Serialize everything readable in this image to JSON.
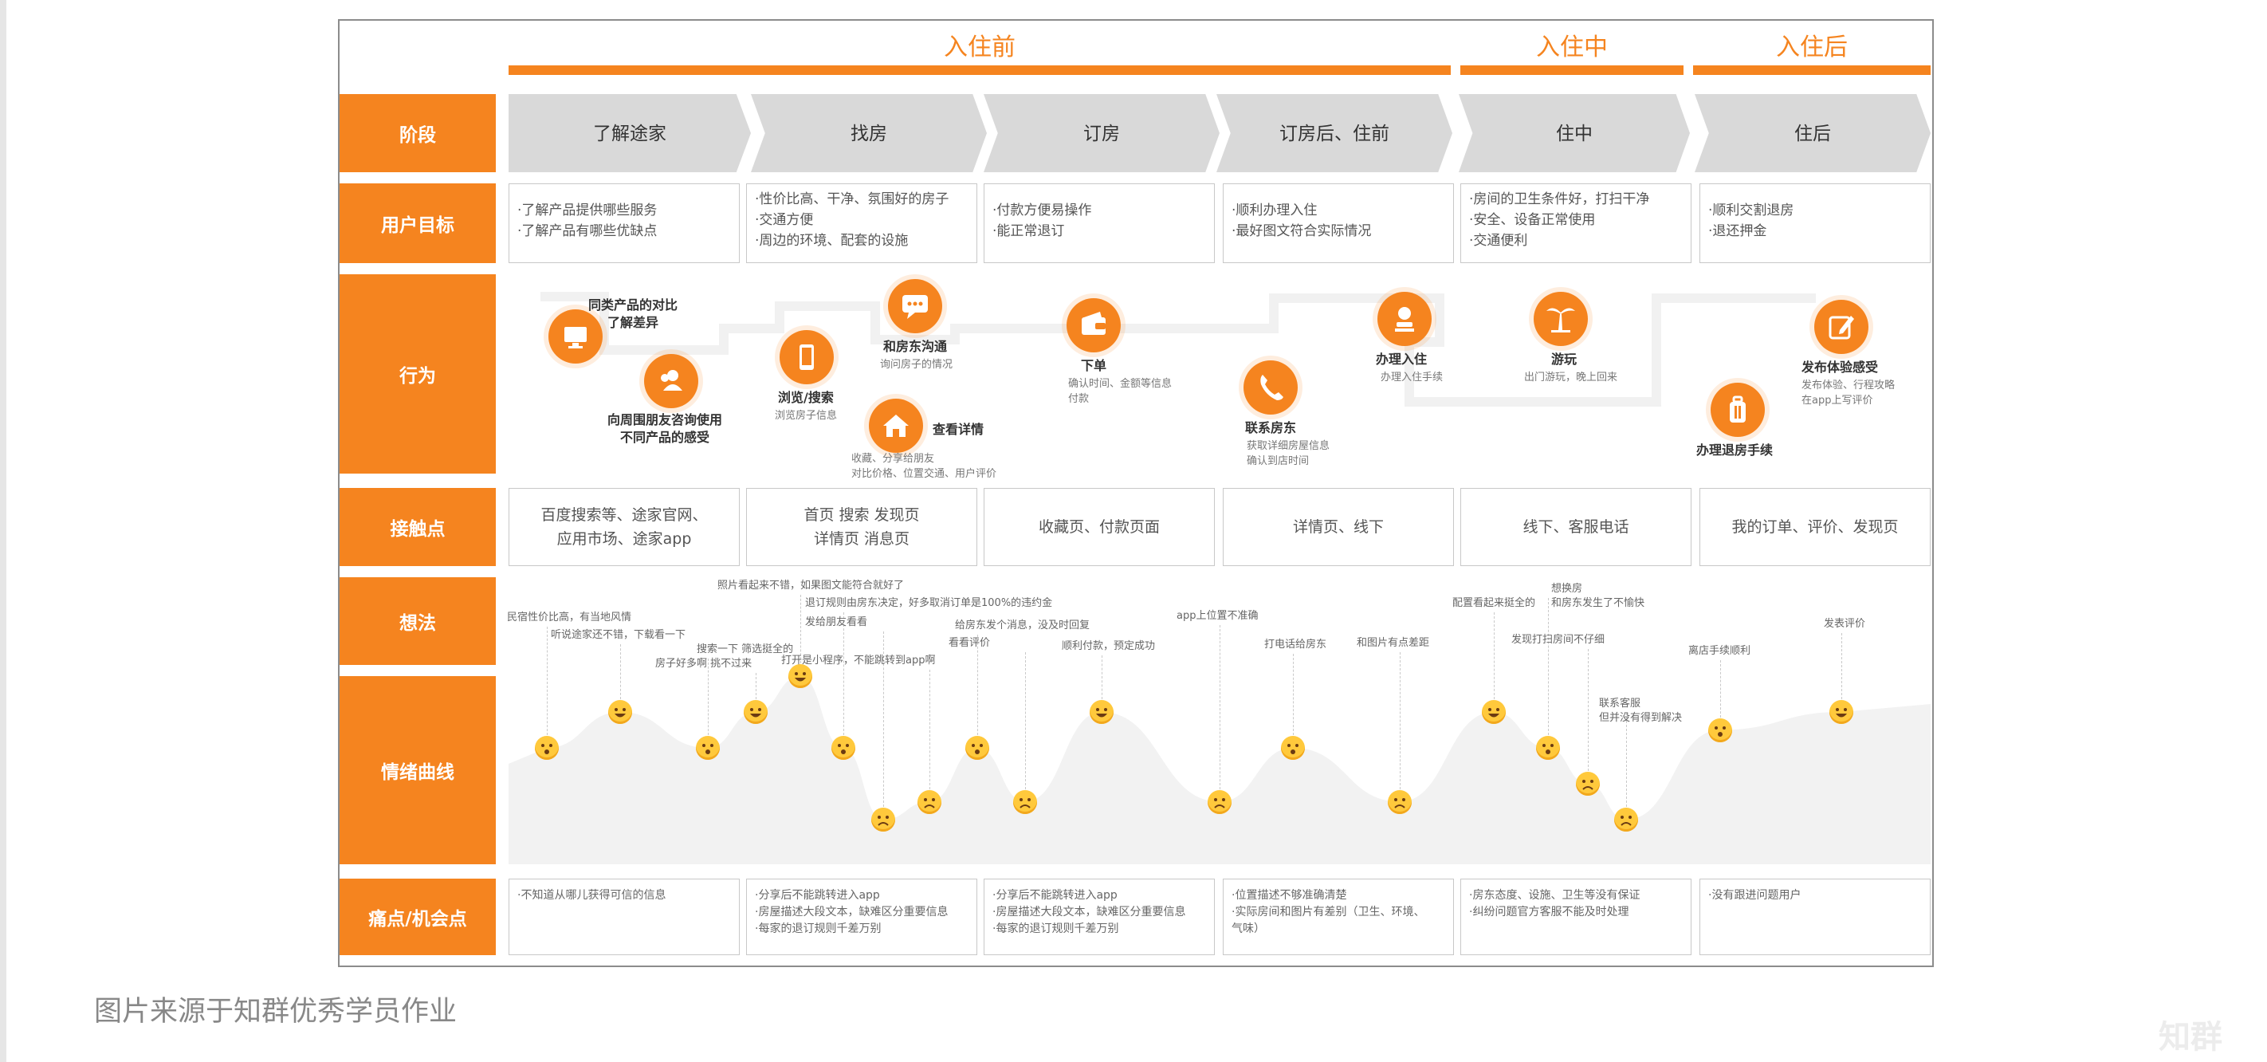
{
  "phases": [
    "入住前",
    "入住中",
    "入住后"
  ],
  "row_labels": [
    "阶段",
    "用户目标",
    "行为",
    "接触点",
    "想法",
    "情绪曲线",
    "痛点/机会点"
  ],
  "stages": [
    "了解途家",
    "找房",
    "订房",
    "订房后、住前",
    "住中",
    "住后"
  ],
  "goals": [
    [
      "·了解产品提供哪些服务",
      "·了解产品有哪些优缺点"
    ],
    [
      "·性价比高、干净、氛围好的房子",
      "·交通方便",
      "·周边的环境、配套的设施"
    ],
    [
      "·付款方便易操作",
      "·能正常退订"
    ],
    [
      "·顺利办理入住",
      "·最好图文符合实际情况"
    ],
    [
      "·房间的卫生条件好，打扫干净",
      "·安全、设备正常使用",
      "·交通便利"
    ],
    [
      "·顺利交割退房",
      "·退还押金"
    ]
  ],
  "actions": [
    {
      "icon": "monitor-icon",
      "title": "同类产品的对比\n了解差异",
      "sub": ""
    },
    {
      "icon": "users-icon",
      "title": "向周围朋友咨询使用\n不同产品的感受",
      "sub": ""
    },
    {
      "icon": "phone-icon",
      "title": "浏览/搜索",
      "sub": "浏览房子信息"
    },
    {
      "icon": "chat-icon",
      "title": "和房东沟通",
      "sub": "询问房子的情况"
    },
    {
      "icon": "home-icon",
      "title": "查看详情",
      "sub": "收藏、分享给朋友\n对比价格、位置交通、用户评价"
    },
    {
      "icon": "wallet-icon",
      "title": "下单",
      "sub": "确认时间、金额等信息\n付款"
    },
    {
      "icon": "call-icon",
      "title": "联系房东",
      "sub": "获取详细房屋信息\n确认到店时间"
    },
    {
      "icon": "checkin-icon",
      "title": "办理入住",
      "sub": "办理入住手续"
    },
    {
      "icon": "palm-icon",
      "title": "游玩",
      "sub": "出门游玩，晚上回来"
    },
    {
      "icon": "luggage-icon",
      "title": "办理退房手续",
      "sub": ""
    },
    {
      "icon": "edit-icon",
      "title": "发布体验感受",
      "sub": "发布体验、行程攻略\n在app上写评价"
    }
  ],
  "touchpoints": [
    "百度搜索等、途家官网、\n应用市场、途家app",
    "首页 搜索 发现页\n详情页 消息页",
    "收藏页、付款页面",
    "详情页、线下",
    "线下、客服电话",
    "我的订单、评价、发现页"
  ],
  "thoughts": [
    "民宿性价比高，有当地风情",
    "听说途家还不错，下载看一下",
    "搜索一下 筛选挺全的",
    "房子好多啊 挑不过来",
    "照片看起来不错，如果图文能符合就好了",
    "退订规则由房东决定，好多取消订单是100%的违约金",
    "发给朋友看看",
    "打开是小程序，不能跳转到app啊",
    "给房东发个消息，没及时回复",
    "看看评价",
    "顺利付款，预定成功",
    "app上位置不准确",
    "打电话给房东",
    "和图片有点差距",
    "配置看起来挺全的",
    "想换房\n和房东发生了不愉快",
    "发现打扫房间不仔细",
    "联系客服\n但并没有得到解决",
    "离店手续顺利",
    "发表评价"
  ],
  "emotion_curve": {
    "type": "line",
    "values": [
      0,
      1,
      0,
      1,
      2,
      0,
      -2,
      -1.5,
      0,
      -1.5,
      1,
      -1.5,
      0,
      -1.5,
      1,
      0,
      -1,
      -2,
      0.5,
      1
    ]
  },
  "pains": [
    [
      "·不知道从哪儿获得可信的信息"
    ],
    [
      "·分享后不能跳转进入app",
      "·房屋描述大段文本，缺难区分重要信息",
      "·每家的退订规则千差万别"
    ],
    [
      "·分享后不能跳转进入app",
      "·房屋描述大段文本，缺难区分重要信息",
      "·每家的退订规则千差万别"
    ],
    [
      "·位置描述不够准确清楚",
      "·实际房间和图片有差别（卫生、环境、",
      "气味）"
    ],
    [
      "·房东态度、设施、卫生等没有保证",
      "·纠纷问题官方客服不能及时处理"
    ],
    [
      "·没有跟进问题用户"
    ]
  ],
  "caption": "图片来源于知群优秀学员作业",
  "watermark": "知群",
  "colors": {
    "accent": "#f5841f",
    "stage_bg": "#d9d9d9",
    "emoji": "#ffc93c"
  }
}
